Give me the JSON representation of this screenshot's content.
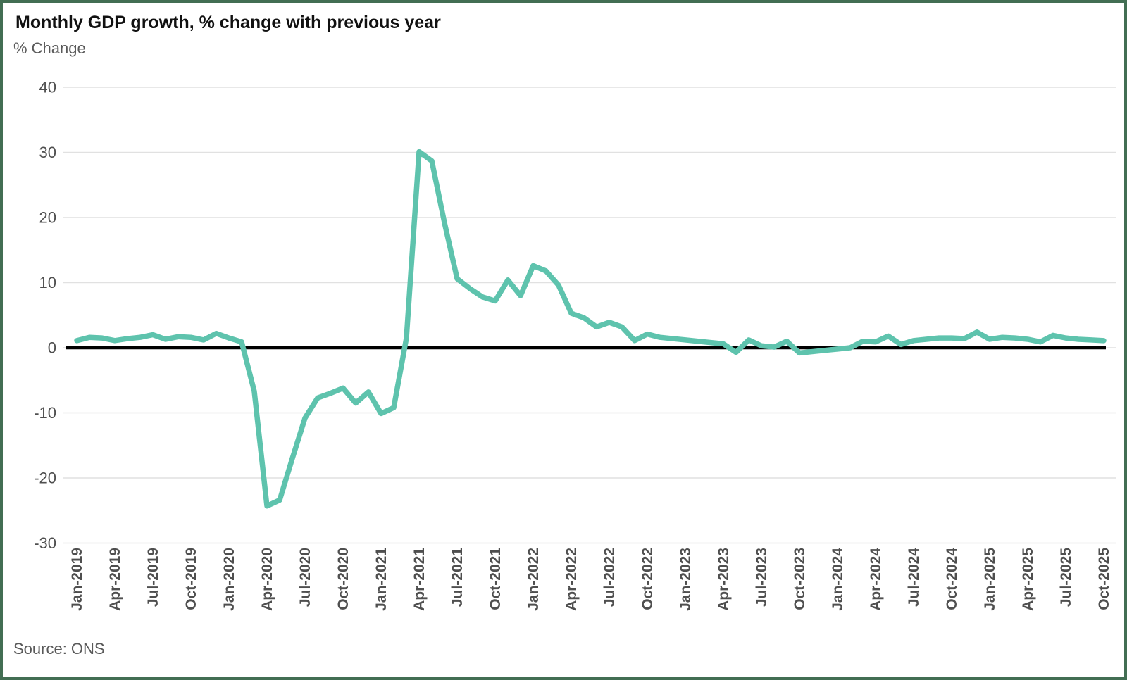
{
  "title": "Monthly GDP growth, % change with previous year",
  "subtitle": "% Change",
  "source": "Source: ONS",
  "colors": {
    "line": "#5ec3ad",
    "zero_line": "#000000",
    "grid": "#e1e1e1",
    "axis_text": "#4f4f4f",
    "title_text": "#111111",
    "border": "#426e53",
    "background": "#ffffff"
  },
  "chart_data": {
    "type": "line",
    "title": "Monthly GDP growth, % change with previous year",
    "ylabel": "% Change",
    "ylim": [
      -30,
      40
    ],
    "yticks": [
      40,
      30,
      20,
      10,
      0,
      -10,
      -20,
      -30
    ],
    "grid": "horizontal",
    "zero_line": true,
    "legend_position": "none",
    "x_tick_every": 3,
    "x": [
      "Jan-2019",
      "Feb-2019",
      "Mar-2019",
      "Apr-2019",
      "May-2019",
      "Jun-2019",
      "Jul-2019",
      "Aug-2019",
      "Sep-2019",
      "Oct-2019",
      "Nov-2019",
      "Dec-2019",
      "Jan-2020",
      "Feb-2020",
      "Mar-2020",
      "Apr-2020",
      "May-2020",
      "Jun-2020",
      "Jul-2020",
      "Aug-2020",
      "Sep-2020",
      "Oct-2020",
      "Nov-2020",
      "Dec-2020",
      "Jan-2021",
      "Feb-2021",
      "Mar-2021",
      "Apr-2021",
      "May-2021",
      "Jun-2021",
      "Jul-2021",
      "Aug-2021",
      "Sep-2021",
      "Oct-2021",
      "Nov-2021",
      "Dec-2021",
      "Jan-2022",
      "Feb-2022",
      "Mar-2022",
      "Apr-2022",
      "May-2022",
      "Jun-2022",
      "Jul-2022",
      "Aug-2022",
      "Sep-2022",
      "Oct-2022",
      "Nov-2022",
      "Dec-2022",
      "Jan-2023",
      "Feb-2023",
      "Mar-2023",
      "Apr-2023",
      "May-2023",
      "Jun-2023",
      "Jul-2023",
      "Aug-2023",
      "Sep-2023",
      "Oct-2023",
      "Nov-2023",
      "Dec-2023",
      "Jan-2024",
      "Feb-2024",
      "Mar-2024",
      "Apr-2024",
      "May-2024",
      "Jun-2024",
      "Jul-2024",
      "Aug-2024",
      "Sep-2024",
      "Oct-2024",
      "Nov-2024",
      "Dec-2024",
      "Jan-2025",
      "Feb-2025",
      "Mar-2025",
      "Apr-2025",
      "May-2025",
      "Jun-2025",
      "Jul-2025",
      "Aug-2025",
      "Sep-2025",
      "Oct-2025"
    ],
    "values": [
      1.1,
      1.6,
      1.5,
      1.1,
      1.4,
      1.6,
      2.0,
      1.3,
      1.7,
      1.6,
      1.2,
      2.2,
      1.5,
      0.9,
      -6.7,
      -24.3,
      -23.4,
      -17.0,
      -10.8,
      -7.7,
      -7.0,
      -6.2,
      -8.5,
      -6.8,
      -10.1,
      -9.2,
      1.5,
      30.1,
      28.7,
      19.2,
      10.6,
      9.1,
      7.8,
      7.2,
      10.4,
      8.0,
      12.6,
      11.8,
      9.6,
      5.3,
      4.6,
      3.2,
      3.9,
      3.2,
      1.1,
      2.1,
      1.6,
      1.4,
      1.2,
      1.0,
      0.8,
      0.6,
      -0.7,
      1.2,
      0.3,
      0.1,
      1.0,
      -0.8,
      -0.6,
      -0.4,
      -0.2,
      0.0,
      1.0,
      0.9,
      1.8,
      0.5,
      1.1,
      1.3,
      1.5,
      1.5,
      1.4,
      2.4,
      1.3,
      1.6,
      1.5,
      1.3,
      0.9,
      1.9,
      1.5,
      1.3,
      1.2,
      1.1
    ]
  }
}
